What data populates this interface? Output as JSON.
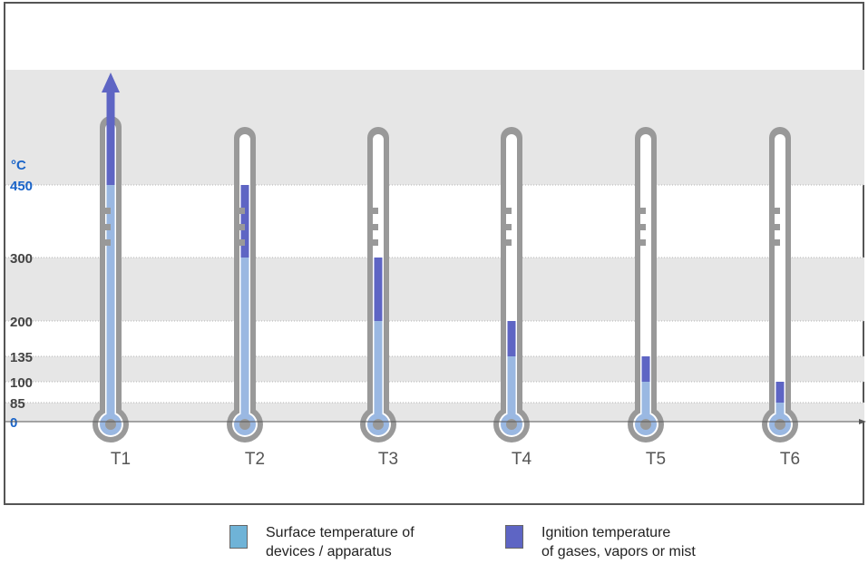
{
  "chart_data": {
    "type": "bar",
    "title": "",
    "ylabel": "°C",
    "xlabel": "",
    "categories": [
      "T1",
      "T2",
      "T3",
      "T4",
      "T5",
      "T6"
    ],
    "y_ticks": [
      "0",
      "85",
      "100",
      "135",
      "200",
      "300",
      "450"
    ],
    "ylim": [
      0,
      450
    ],
    "series": [
      {
        "name": "Surface temperature of devices / apparatus",
        "values": [
          450,
          300,
          200,
          135,
          100,
          85
        ]
      },
      {
        "name": "Ignition temperature of gases, vapors or mist",
        "ranges": [
          [
            450,
            600
          ],
          [
            300,
            450
          ],
          [
            200,
            300
          ],
          [
            135,
            200
          ],
          [
            100,
            135
          ],
          [
            85,
            100
          ]
        ]
      }
    ],
    "open_ended_top": "T1",
    "grid": true,
    "legend_placement": "bottom"
  },
  "legend": {
    "surface_line1": "Surface temperature of",
    "surface_line2": "devices / apparatus",
    "ignition_line1": "Ignition temperature",
    "ignition_line2": "of gases, vapors or mist"
  },
  "colors": {
    "surface": "#6fb3d7",
    "surface_fill": "#9ab8e2",
    "ignition": "#5e65c4",
    "tube": "#999999",
    "band": "#e6e6e6",
    "unit_label": "#1a64c8"
  }
}
